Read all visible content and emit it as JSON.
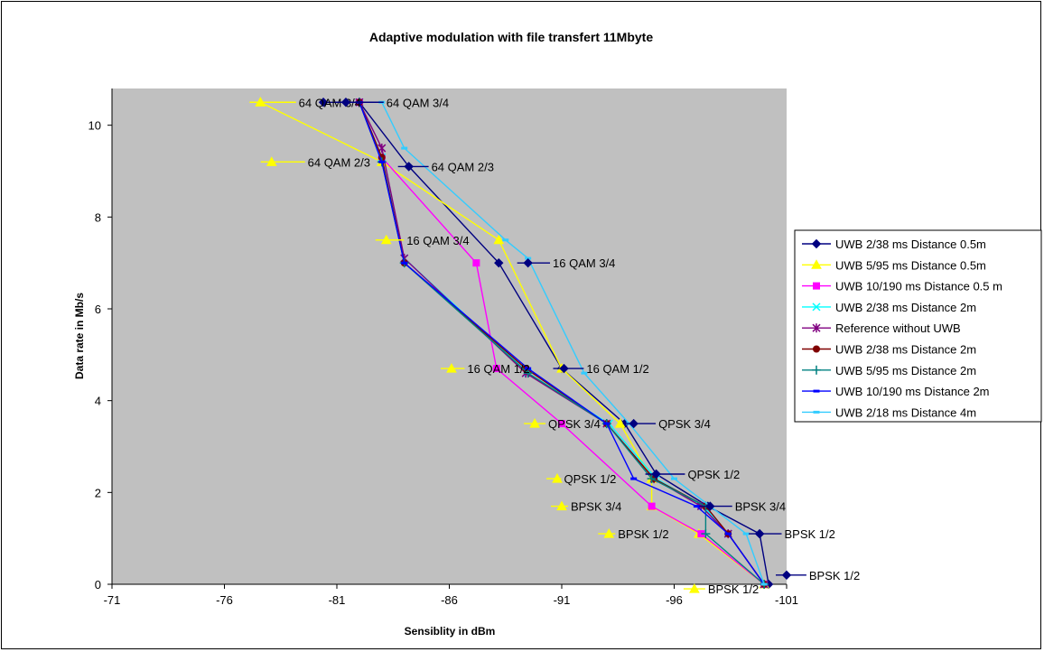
{
  "chart_data": {
    "type": "line",
    "title": "Adaptive modulation with file transfert 11Mbyte",
    "xlabel": "Sensiblity in dBm",
    "ylabel": "Data rate in Mb/s",
    "xlim": [
      -71,
      -101
    ],
    "ylim": [
      0,
      10.8
    ],
    "xticks": [
      -71,
      -76,
      -81,
      -86,
      -91,
      -96,
      -101
    ],
    "xtick_labels": [
      "-71",
      "-76",
      "-81",
      "-86",
      "-91",
      "-96",
      "-101"
    ],
    "yticks": [
      0,
      2,
      4,
      6,
      8,
      10
    ],
    "ytick_labels": [
      "0",
      "2",
      "4",
      "6",
      "8",
      "10"
    ],
    "plot_background": "#c0c0c0",
    "grid": false,
    "legend_position": "right",
    "series": [
      {
        "name": "UWB 2/38 ms Distance 0.5m",
        "color": "#000080",
        "marker": "diamond",
        "points": [
          [
            -80.4,
            10.5
          ],
          [
            -82,
            10.5
          ],
          [
            -84.2,
            9.1
          ],
          [
            -88.2,
            7.0
          ],
          [
            -91,
            4.7
          ],
          [
            -93.8,
            3.5
          ],
          [
            -95.2,
            2.4
          ],
          [
            -97.5,
            1.7
          ],
          [
            -99.8,
            1.1
          ],
          [
            -100.2,
            0.0
          ]
        ]
      },
      {
        "name": "UWB 5/95 ms Distance 0.5m",
        "color": "#ffff00",
        "marker": "triangle",
        "points": [
          [
            -77.6,
            10.5
          ],
          [
            -83,
            9.2
          ],
          [
            -88.2,
            7.5
          ],
          [
            -91,
            4.7
          ],
          [
            -93.6,
            3.5
          ],
          [
            -95,
            2.3
          ],
          [
            -95,
            1.7
          ],
          [
            -97.1,
            1.1
          ],
          [
            -100,
            0.0
          ]
        ]
      },
      {
        "name": "UWB 10/190 ms Distance 0.5 m",
        "color": "#ff00ff",
        "marker": "square",
        "points": [
          [
            -82,
            10.5
          ],
          [
            -83,
            9.3
          ],
          [
            -87.2,
            7.0
          ],
          [
            -88.1,
            4.7
          ],
          [
            -91,
            3.5
          ],
          [
            -95,
            1.7
          ],
          [
            -97.2,
            1.1
          ],
          [
            -100,
            0.0
          ]
        ]
      },
      {
        "name": "UWB 2/38 ms Distance 2m",
        "color": "#00ffff",
        "marker": "x",
        "points": [
          [
            -82,
            10.5
          ],
          [
            -83,
            9.3
          ],
          [
            -84,
            7.1
          ],
          [
            -89.5,
            4.6
          ],
          [
            -93.1,
            3.5
          ],
          [
            -95.2,
            2.3
          ],
          [
            -97.3,
            1.7
          ],
          [
            -98.4,
            1.1
          ],
          [
            -100,
            0.0
          ]
        ]
      },
      {
        "name": "Reference without UWB",
        "color": "#800080",
        "marker": "star",
        "points": [
          [
            -82,
            10.5
          ],
          [
            -83,
            9.5
          ],
          [
            -84,
            7.1
          ],
          [
            -89.4,
            4.6
          ],
          [
            -93.0,
            3.5
          ],
          [
            -95.1,
            2.3
          ],
          [
            -97.2,
            1.7
          ],
          [
            -98.4,
            1.1
          ],
          [
            -100,
            0.0
          ]
        ]
      },
      {
        "name": "UWB 2/38 ms Distance 2m",
        "color": "#800000",
        "marker": "circle",
        "points": [
          [
            -82,
            10.5
          ],
          [
            -83,
            9.3
          ],
          [
            -84,
            7.0
          ],
          [
            -89.4,
            4.7
          ],
          [
            -93,
            3.5
          ],
          [
            -95.1,
            2.3
          ],
          [
            -97.4,
            1.7
          ],
          [
            -98.4,
            1.1
          ],
          [
            -100,
            0.0
          ]
        ]
      },
      {
        "name": "UWB 5/95 ms Distance 2m",
        "color": "#008080",
        "marker": "plus",
        "points": [
          [
            -82,
            10.5
          ],
          [
            -83,
            9.2
          ],
          [
            -84,
            7.0
          ],
          [
            -89.5,
            4.6
          ],
          [
            -93,
            3.5
          ],
          [
            -95,
            2.3
          ],
          [
            -97.4,
            1.7
          ],
          [
            -97.4,
            1.1
          ],
          [
            -100,
            0.0
          ]
        ]
      },
      {
        "name": "UWB 10/190 ms Distance 2m",
        "color": "#0000ff",
        "marker": "dash",
        "points": [
          [
            -82,
            10.5
          ],
          [
            -83,
            9.2
          ],
          [
            -84,
            7.0
          ],
          [
            -89.5,
            4.7
          ],
          [
            -93,
            3.5
          ],
          [
            -94.2,
            2.3
          ],
          [
            -97,
            1.7
          ],
          [
            -98.4,
            1.1
          ],
          [
            -100,
            0.0
          ]
        ]
      },
      {
        "name": "UWB 2/18 ms Distance 4m",
        "color": "#33ccff",
        "marker": "dash",
        "points": [
          [
            -83,
            10.5
          ],
          [
            -84,
            9.5
          ],
          [
            -88.5,
            7.5
          ],
          [
            -89.5,
            7.1
          ],
          [
            -92,
            4.6
          ],
          [
            -94,
            3.5
          ],
          [
            -96,
            2.3
          ],
          [
            -97.6,
            1.7
          ],
          [
            -99.2,
            1.1
          ],
          [
            -100,
            0.0
          ]
        ]
      }
    ],
    "annotations": [
      {
        "text": "64 QAM 3/4",
        "x": -79.3,
        "y": 10.5,
        "color": "#ffff00",
        "marker": "triangle",
        "marker_x": -77.6
      },
      {
        "text": "64 QAM 3/4",
        "x": -83.2,
        "y": 10.5,
        "color": "#000080",
        "marker": "diamond",
        "marker_x": -81.4
      },
      {
        "text": "64 QAM 2/3",
        "x": -79.7,
        "y": 9.2,
        "color": "#ffff00",
        "marker": "triangle",
        "marker_x": -78.1
      },
      {
        "text": "64 QAM 2/3",
        "x": -85.2,
        "y": 9.1,
        "color": "#000080",
        "marker": "diamond",
        "marker_x": -84.2
      },
      {
        "text": "16 QAM 3/4",
        "x": -84.1,
        "y": 7.5,
        "color": "#ffff00",
        "marker": "triangle",
        "marker_x": -83.2
      },
      {
        "text": "16 QAM 3/4",
        "x": -90.6,
        "y": 7.0,
        "color": "#000080",
        "marker": "diamond",
        "marker_x": -89.5
      },
      {
        "text": "16 QAM 1/2",
        "x": -86.8,
        "y": 4.7,
        "color": "#ffff00",
        "marker": "triangle",
        "marker_x": -86.1
      },
      {
        "text": "16 QAM 1/2",
        "x": -92.1,
        "y": 4.7,
        "color": "#000080",
        "marker": "diamond",
        "marker_x": -91.1
      },
      {
        "text": "QPSK 3/4",
        "x": -90.4,
        "y": 3.5,
        "color": "#ffff00",
        "marker": "triangle",
        "marker_x": -89.8
      },
      {
        "text": "QPSK 3/4",
        "x": -95.3,
        "y": 3.5,
        "color": "#000080",
        "marker": "diamond",
        "marker_x": -94.2
      },
      {
        "text": "QPSK 1/2",
        "x": -91.1,
        "y": 2.3,
        "color": "#ffff00",
        "marker": "triangle",
        "marker_x": -90.8
      },
      {
        "text": "QPSK 1/2",
        "x": -96.6,
        "y": 2.4,
        "color": "#000080",
        "marker": "diamond",
        "marker_x": -95.2
      },
      {
        "text": "BPSK 3/4",
        "x": -91.4,
        "y": 1.7,
        "color": "#ffff00",
        "marker": "triangle",
        "marker_x": -91
      },
      {
        "text": "BPSK 3/4",
        "x": -98.7,
        "y": 1.7,
        "color": "#000080",
        "marker": "diamond",
        "marker_x": -97.6
      },
      {
        "text": "BPSK 1/2",
        "x": -93.5,
        "y": 1.1,
        "color": "#ffff00",
        "marker": "triangle",
        "marker_x": -93.1
      },
      {
        "text": "BPSK 1/2",
        "x": -100.9,
        "y": 1.1,
        "color": "#000080",
        "marker": "diamond",
        "marker_x": -99.8
      },
      {
        "text": "BPSK 1/2",
        "x": -97.5,
        "y": -0.1,
        "color": "#ffff00",
        "marker": "triangle",
        "marker_x": -96.9
      },
      {
        "text": "BPSK 1/2",
        "x": -102.0,
        "y": 0.2,
        "color": "#000080",
        "marker": "diamond",
        "marker_x": -101
      }
    ]
  }
}
